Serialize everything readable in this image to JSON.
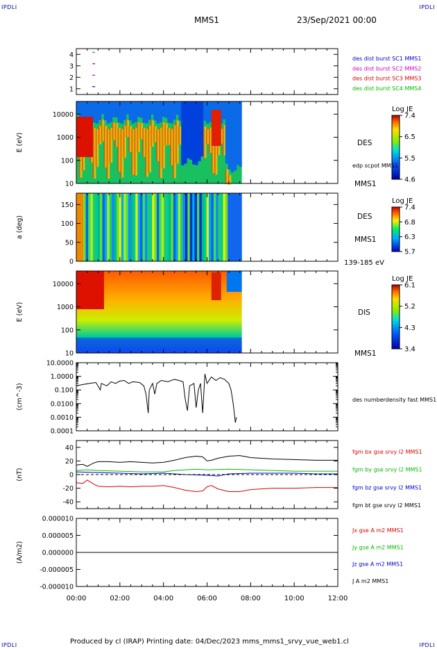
{
  "header": {
    "corner_left": "IPDLI",
    "corner_right": "IPDLI",
    "spacecraft": "MMS1",
    "datetime": "23/Sep/2021 00:00"
  },
  "footer": {
    "text": "Produced by cl (IRAP)   Printing date: 04/Dec/2023   mms_mms1_srvy_vue_web1.cl",
    "corner_left": "IPDLI",
    "corner_right": "IPDLI"
  },
  "colors": {
    "blue": "#0000cc",
    "magenta": "#cc00cc",
    "red": "#dd0000",
    "green": "#00bb00",
    "black": "#000000"
  },
  "chart_data": [
    {
      "type": "scatter",
      "panel": "burst",
      "x_ticks": [],
      "y_ticks": [
        "1",
        "2",
        "3",
        "4"
      ],
      "ylim": [
        0.5,
        4.5
      ],
      "series": [
        {
          "name": "des dist burst SC1 MMS1",
          "color": "#0000cc",
          "y": 1,
          "x_hours": [
            0.8
          ]
        },
        {
          "name": "des dist burst SC2 MMS2",
          "color": "#cc00cc",
          "y": 2,
          "x_hours": [
            0.8
          ]
        },
        {
          "name": "des dist burst SC3 MMS3",
          "color": "#dd0000",
          "y": 3,
          "x_hours": [
            0.8
          ]
        },
        {
          "name": "des dist burst SC4 MMS4",
          "color": "#00bb00",
          "y": 4,
          "x_hours": [
            0.8
          ]
        }
      ]
    },
    {
      "type": "heatmap",
      "panel": "des-energy",
      "ylabel": "E (eV)",
      "y_ticks": [
        "10",
        "100",
        "1000",
        "10000"
      ],
      "instrument": "DES",
      "side_label": "edp scpot MMS1",
      "bottom_label": "MMS1",
      "colorbar": {
        "title": "Log JE",
        "ticks": [
          "7.4",
          "6.5",
          "5.5",
          "4.6"
        ]
      },
      "data_end_hour": 7.6
    },
    {
      "type": "heatmap",
      "panel": "des-pitch",
      "ylabel": "a (deg)",
      "y_ticks": [
        "0",
        "50",
        "100",
        "150"
      ],
      "instrument": "DES",
      "side_label": "MMS1",
      "bottom_label": "139-185 eV",
      "colorbar": {
        "title": "Log JE",
        "ticks": [
          "7.4",
          "6.8",
          "6.3",
          "5.7"
        ]
      },
      "data_end_hour": 7.6
    },
    {
      "type": "heatmap",
      "panel": "dis-energy",
      "ylabel": "E (eV)",
      "y_ticks": [
        "10",
        "100",
        "1000",
        "10000"
      ],
      "instrument": "DIS",
      "bottom_label": "MMS1",
      "colorbar": {
        "title": "Log JE",
        "ticks": [
          "6.1",
          "5.2",
          "4.3",
          "3.4"
        ]
      },
      "data_end_hour": 7.6
    },
    {
      "type": "line",
      "panel": "density",
      "ylabel": "(cm^-3)",
      "y_ticks": [
        "0.0001",
        "0.0010",
        "0.0100",
        "0.100",
        "1.0000",
        "10.0000"
      ],
      "ylim": [
        0.0001,
        10
      ],
      "series": [
        {
          "name": "des numberdensity fast MMS1",
          "color": "#000000",
          "points": [
            [
              0.0,
              0.2
            ],
            [
              0.3,
              0.25
            ],
            [
              0.6,
              0.3
            ],
            [
              0.9,
              0.35
            ],
            [
              1.1,
              0.1
            ],
            [
              1.15,
              0.3
            ],
            [
              1.4,
              0.2
            ],
            [
              1.6,
              0.4
            ],
            [
              1.8,
              0.3
            ],
            [
              2.0,
              0.45
            ],
            [
              2.2,
              0.5
            ],
            [
              2.4,
              0.3
            ],
            [
              2.6,
              0.4
            ],
            [
              2.9,
              0.35
            ],
            [
              3.1,
              0.2
            ],
            [
              3.2,
              0.05
            ],
            [
              3.3,
              0.002
            ],
            [
              3.35,
              0.1
            ],
            [
              3.5,
              0.3
            ],
            [
              3.6,
              0.05
            ],
            [
              3.7,
              0.3
            ],
            [
              3.9,
              0.5
            ],
            [
              4.2,
              0.4
            ],
            [
              4.5,
              0.6
            ],
            [
              4.7,
              0.5
            ],
            [
              4.9,
              0.4
            ],
            [
              5.0,
              0.02
            ],
            [
              5.1,
              0.003
            ],
            [
              5.2,
              0.2
            ],
            [
              5.4,
              0.3
            ],
            [
              5.5,
              0.005
            ],
            [
              5.6,
              0.1
            ],
            [
              5.7,
              0.3
            ],
            [
              5.8,
              0.002
            ],
            [
              5.9,
              1.5
            ],
            [
              6.0,
              0.3
            ],
            [
              6.2,
              0.9
            ],
            [
              6.4,
              0.5
            ],
            [
              6.6,
              0.8
            ],
            [
              6.8,
              0.6
            ],
            [
              7.0,
              0.3
            ],
            [
              7.1,
              0.1
            ],
            [
              7.2,
              0.01
            ],
            [
              7.3,
              0.0004
            ],
            [
              7.35,
              0.001
            ]
          ]
        }
      ]
    },
    {
      "type": "line",
      "panel": "magnetic-field",
      "ylabel": "(nT)",
      "y_ticks": [
        "-40",
        "-20",
        "0",
        "20",
        "40"
      ],
      "ylim": [
        -50,
        50
      ],
      "series": [
        {
          "name": "fgm bx gse srvy l2 MMS1",
          "color": "#dd0000",
          "points": [
            [
              0,
              -12
            ],
            [
              0.3,
              -13
            ],
            [
              0.5,
              -8
            ],
            [
              0.8,
              -14
            ],
            [
              1,
              -17
            ],
            [
              1.5,
              -18
            ],
            [
              2,
              -17
            ],
            [
              2.5,
              -18
            ],
            [
              3,
              -17
            ],
            [
              3.5,
              -17
            ],
            [
              4,
              -16
            ],
            [
              4.5,
              -19
            ],
            [
              5,
              -23
            ],
            [
              5.5,
              -25
            ],
            [
              5.8,
              -24
            ],
            [
              6,
              -18
            ],
            [
              6.2,
              -16
            ],
            [
              6.5,
              -21
            ],
            [
              7,
              -25
            ],
            [
              7.5,
              -25
            ],
            [
              8,
              -22
            ],
            [
              9,
              -20
            ],
            [
              10,
              -20
            ],
            [
              11,
              -19
            ],
            [
              12,
              -19
            ]
          ]
        },
        {
          "name": "fgm by gse srvy l2 MMS1",
          "color": "#00bb00",
          "points": [
            [
              0,
              6
            ],
            [
              0.5,
              7
            ],
            [
              1,
              6
            ],
            [
              2,
              5
            ],
            [
              3,
              4
            ],
            [
              4,
              4
            ],
            [
              4.5,
              6
            ],
            [
              5,
              7
            ],
            [
              5.5,
              8
            ],
            [
              6,
              7
            ],
            [
              7,
              8
            ],
            [
              8,
              7
            ],
            [
              9,
              6
            ],
            [
              10,
              5
            ],
            [
              11,
              5
            ],
            [
              12,
              5
            ]
          ]
        },
        {
          "name": "fgm bz gse srvy l2 MMS1",
          "color": "#0000cc",
          "points": [
            [
              0,
              4
            ],
            [
              1,
              3
            ],
            [
              2,
              2
            ],
            [
              3,
              1
            ],
            [
              4,
              2
            ],
            [
              5,
              0
            ],
            [
              6,
              -1
            ],
            [
              6.5,
              -2
            ],
            [
              7,
              1
            ],
            [
              8,
              2
            ],
            [
              9,
              2
            ],
            [
              10,
              2
            ],
            [
              11,
              1
            ],
            [
              12,
              1
            ]
          ]
        },
        {
          "name": "fgm bt gse srvy l2 MMS1",
          "color": "#000000",
          "points": [
            [
              0,
              14
            ],
            [
              0.3,
              15
            ],
            [
              0.5,
              12
            ],
            [
              0.8,
              17
            ],
            [
              1,
              19
            ],
            [
              1.5,
              19
            ],
            [
              2,
              18
            ],
            [
              2.5,
              19
            ],
            [
              3,
              18
            ],
            [
              3.5,
              17
            ],
            [
              4,
              18
            ],
            [
              4.5,
              21
            ],
            [
              5,
              25
            ],
            [
              5.5,
              27
            ],
            [
              5.8,
              26
            ],
            [
              6,
              20
            ],
            [
              6.2,
              21
            ],
            [
              6.5,
              24
            ],
            [
              7,
              27
            ],
            [
              7.5,
              28
            ],
            [
              8,
              25
            ],
            [
              9,
              23
            ],
            [
              10,
              22
            ],
            [
              11,
              21
            ],
            [
              12,
              21
            ]
          ]
        }
      ]
    },
    {
      "type": "line",
      "panel": "current-density",
      "ylabel": "(A/m2)",
      "y_ticks": [
        "-0.000010",
        "-0.000005",
        "0.000000",
        "0.000005",
        "0.000010"
      ],
      "ylim": [
        -1e-05,
        1e-05
      ],
      "x_ticks": [
        "00:00",
        "02:00",
        "04:00",
        "06:00",
        "08:00",
        "10:00",
        "12:00"
      ],
      "series": [
        {
          "name": "Jx gse A m2 MMS1",
          "color": "#dd0000"
        },
        {
          "name": "Jy gse A m2 MMS1",
          "color": "#00bb00"
        },
        {
          "name": "Jz gse A m2 MMS1",
          "color": "#0000cc"
        },
        {
          "name": "J A m2 MMS1",
          "color": "#000000"
        }
      ]
    }
  ]
}
